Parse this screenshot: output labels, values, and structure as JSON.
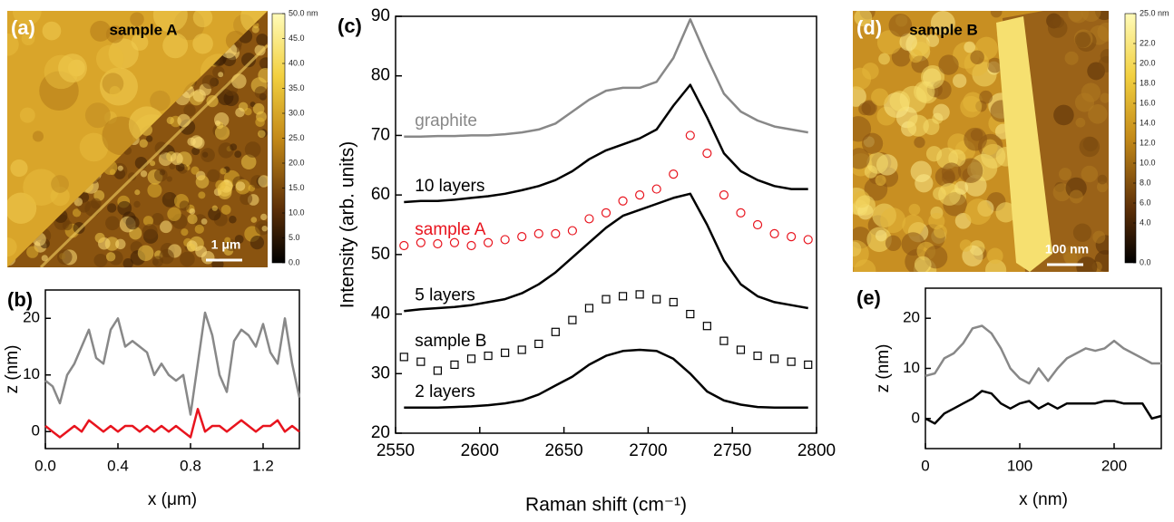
{
  "images": [
    {
      "label": "(a)",
      "title": "sample A",
      "scale_bar": "1 μm",
      "colorbar": {
        "lim": [
          0,
          50
        ],
        "ticks": [
          {
            "value": 50,
            "label": "50.0 nm"
          },
          {
            "value": 45,
            "label": "45.0"
          },
          {
            "value": 40,
            "label": "40.0"
          },
          {
            "value": 35,
            "label": "35.0"
          },
          {
            "value": 30,
            "label": "30.0"
          },
          {
            "value": 25,
            "label": "25.0"
          },
          {
            "value": 20,
            "label": "20.0"
          },
          {
            "value": 15,
            "label": "15.0"
          },
          {
            "value": 10,
            "label": "10.0"
          },
          {
            "value": 5,
            "label": "5.0"
          },
          {
            "value": 0,
            "label": "0.0"
          }
        ]
      }
    },
    {
      "label": "(d)",
      "title": "sample B",
      "scale_bar": "100 nm",
      "colorbar": {
        "lim": [
          0,
          25
        ],
        "ticks": [
          {
            "value": 25,
            "label": "25.0 nm"
          },
          {
            "value": 22,
            "label": "22.0"
          },
          {
            "value": 20,
            "label": "20.0"
          },
          {
            "value": 18,
            "label": "18.0"
          },
          {
            "value": 16,
            "label": "16.0"
          },
          {
            "value": 14,
            "label": "14.0"
          },
          {
            "value": 12,
            "label": "12.0"
          },
          {
            "value": 10,
            "label": "10.0"
          },
          {
            "value": 8,
            "label": "8.0"
          },
          {
            "value": 6,
            "label": "6.0"
          },
          {
            "value": 4,
            "label": "4.0"
          },
          {
            "value": 0,
            "label": "0.0"
          }
        ]
      }
    }
  ],
  "chart_data": [
    {
      "type": "line",
      "panel": "(b)",
      "xlabel": "x (μm)",
      "ylabel": "z (nm)",
      "x": [
        0,
        0.04,
        0.08,
        0.12,
        0.16,
        0.2,
        0.24,
        0.28,
        0.32,
        0.36,
        0.4,
        0.44,
        0.48,
        0.52,
        0.56,
        0.6,
        0.64,
        0.68,
        0.72,
        0.76,
        0.8,
        0.84,
        0.88,
        0.92,
        0.96,
        1.0,
        1.04,
        1.08,
        1.12,
        1.16,
        1.2,
        1.24,
        1.28,
        1.32,
        1.36,
        1.4
      ],
      "xlim": [
        0,
        1.4
      ],
      "xticks": [
        {
          "value": 0,
          "label": "0.0"
        },
        0.4,
        0.8,
        1.2
      ],
      "ylim": [
        -3,
        25
      ],
      "yticks": [
        0,
        10,
        20
      ],
      "series": [
        {
          "color": "#888888",
          "values": [
            9,
            8,
            5,
            10,
            12,
            15,
            18,
            13,
            12,
            18,
            20,
            15,
            16,
            15,
            14,
            10,
            12,
            10,
            9,
            10,
            3,
            12,
            21,
            17,
            10,
            7,
            16,
            18,
            17,
            15,
            19,
            14,
            12,
            20,
            12,
            6
          ]
        },
        {
          "color": "#e8141e",
          "values": [
            1,
            0,
            -1,
            0,
            1,
            0,
            2,
            1,
            0,
            1,
            0,
            1,
            1,
            0,
            1,
            0,
            1,
            0,
            1,
            0,
            -1,
            4,
            0,
            1,
            1,
            0,
            1,
            2,
            1,
            0,
            1,
            1,
            2,
            0,
            1,
            0
          ]
        }
      ]
    },
    {
      "type": "line",
      "panel": "(c)",
      "xlabel": "Raman shift (cm⁻¹)",
      "ylabel": "Intensity (arb. units)",
      "x": [
        2555,
        2565,
        2575,
        2585,
        2595,
        2605,
        2615,
        2625,
        2635,
        2645,
        2655,
        2665,
        2675,
        2685,
        2695,
        2705,
        2715,
        2725,
        2735,
        2745,
        2755,
        2765,
        2775,
        2785,
        2795
      ],
      "xlim": [
        2550,
        2800
      ],
      "xticks": [
        2550,
        2600,
        2650,
        2700,
        2750,
        2800
      ],
      "ylim": [
        20,
        90
      ],
      "yticks": [
        20,
        30,
        40,
        50,
        60,
        70,
        80,
        90
      ],
      "series": [
        {
          "name": "graphite",
          "color": "#888888",
          "values": [
            69.8,
            69.8,
            69.9,
            69.9,
            70,
            70,
            70.2,
            70.5,
            71,
            72,
            74,
            76,
            77.5,
            78,
            78,
            79,
            83,
            89.5,
            83,
            77,
            74,
            72.5,
            71.5,
            71,
            70.5
          ]
        },
        {
          "name": "10 layers",
          "color": "#000000",
          "values": [
            58.8,
            59,
            59,
            59.2,
            59.5,
            59.8,
            60.2,
            60.8,
            61.5,
            62.5,
            64,
            66,
            67.5,
            68.5,
            69.5,
            71,
            75,
            78.5,
            73,
            67,
            64,
            62.5,
            61.5,
            61,
            61
          ]
        },
        {
          "name": "sample A",
          "color": "#e8141e",
          "marker": "circle",
          "values": [
            51.5,
            52,
            51.8,
            52,
            51.5,
            52,
            52.5,
            53,
            53.5,
            53.5,
            54,
            56,
            57,
            59,
            60,
            61,
            63.5,
            70,
            67,
            60,
            57,
            55,
            53.5,
            53,
            52.5
          ]
        },
        {
          "name": "5 layers",
          "color": "#000000",
          "values": [
            40.5,
            40.8,
            41,
            41.2,
            41.5,
            42,
            42.5,
            43.5,
            45,
            47,
            49.5,
            52,
            54.5,
            56.5,
            57.5,
            58.5,
            59.5,
            60.2,
            55,
            49,
            45,
            43,
            42,
            41.5,
            41
          ]
        },
        {
          "name": "sample B",
          "color": "#000000",
          "marker": "square",
          "values": [
            32.8,
            32,
            30.5,
            31.5,
            32.5,
            33,
            33.5,
            34,
            35,
            37,
            39,
            41,
            42.5,
            43,
            43.3,
            42.5,
            42,
            40,
            38,
            35.5,
            34,
            33,
            32.5,
            32,
            31.5
          ]
        },
        {
          "name": "2 layers",
          "color": "#000000",
          "values": [
            24.3,
            24.3,
            24.3,
            24.4,
            24.5,
            24.7,
            25,
            25.5,
            26.5,
            28,
            29.5,
            31.5,
            33,
            33.8,
            34,
            33.8,
            32.5,
            30,
            27,
            25.5,
            24.8,
            24.4,
            24.3,
            24.3,
            24.3
          ]
        }
      ]
    },
    {
      "type": "line",
      "panel": "(e)",
      "xlabel": "x (nm)",
      "ylabel": "z (nm)",
      "x": [
        0,
        10,
        20,
        30,
        40,
        50,
        60,
        70,
        80,
        90,
        100,
        110,
        120,
        130,
        140,
        150,
        160,
        170,
        180,
        190,
        200,
        210,
        220,
        230,
        240,
        250
      ],
      "xlim": [
        0,
        250
      ],
      "xticks": [
        0,
        100,
        200
      ],
      "ylim": [
        -6,
        26
      ],
      "yticks": [
        0,
        10,
        20
      ],
      "series": [
        {
          "color": "#888888",
          "values": [
            8.5,
            9,
            12,
            13,
            15,
            18,
            18.5,
            17,
            14,
            10,
            8,
            7,
            10,
            7.5,
            10,
            12,
            13,
            14,
            13.5,
            14,
            15.5,
            14,
            13,
            12,
            11,
            11
          ]
        },
        {
          "color": "#000000",
          "values": [
            0,
            -1,
            1,
            2,
            3,
            4,
            5.5,
            5,
            3,
            2,
            3,
            3.5,
            2,
            3,
            2,
            3,
            3,
            3,
            3,
            3.5,
            3.5,
            3,
            3,
            3,
            0,
            0.5
          ]
        }
      ]
    }
  ]
}
